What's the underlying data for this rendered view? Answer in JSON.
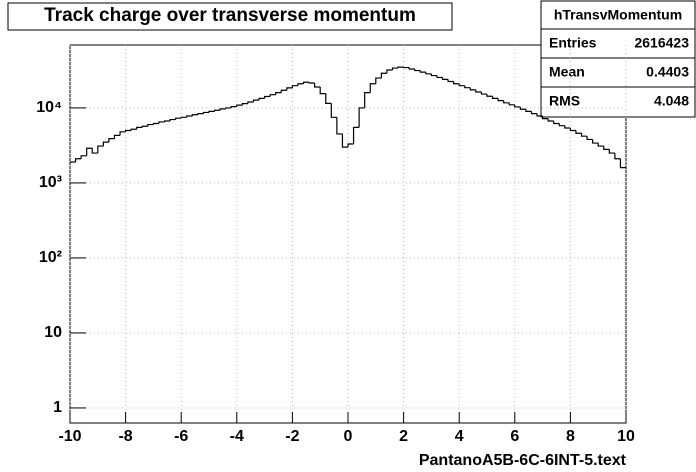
{
  "chart_data": {
    "type": "histogram",
    "title": "Track charge over transverse momentum",
    "x_label": "PantanoA5B-6C-6INT-5.text",
    "bins": [
      -10,
      -9.8,
      -9.6,
      -9.4,
      -9.2,
      -9,
      -8.8,
      -8.6,
      -8.4,
      -8.2,
      -8,
      -7.8,
      -7.6,
      -7.4,
      -7.2,
      -7,
      -6.8,
      -6.6,
      -6.4,
      -6.2,
      -6,
      -5.8,
      -5.6,
      -5.4,
      -5.2,
      -5,
      -4.8,
      -4.6,
      -4.4,
      -4.2,
      -4,
      -3.8,
      -3.6,
      -3.4,
      -3.2,
      -3,
      -2.8,
      -2.6,
      -2.4,
      -2.2,
      -2,
      -1.8,
      -1.6,
      -1.4,
      -1.2,
      -1,
      -0.8,
      -0.6,
      -0.4,
      -0.2,
      0,
      0.2,
      0.4,
      0.6,
      0.8,
      1,
      1.2,
      1.4,
      1.6,
      1.8,
      2,
      2.2,
      2.4,
      2.6,
      2.8,
      3,
      3.2,
      3.4,
      3.6,
      3.8,
      4,
      4.2,
      4.4,
      4.6,
      4.8,
      5,
      5.2,
      5.4,
      5.6,
      5.8,
      6,
      6.2,
      6.4,
      6.6,
      6.8,
      7,
      7.2,
      7.4,
      7.6,
      7.8,
      8,
      8.2,
      8.4,
      8.6,
      8.8,
      9,
      9.2,
      9.4,
      9.6,
      9.8,
      10
    ],
    "values": [
      1900,
      2100,
      2300,
      2900,
      2500,
      3100,
      3500,
      3900,
      4300,
      4800,
      5000,
      5200,
      5500,
      5700,
      6000,
      6200,
      6500,
      6700,
      7000,
      7300,
      7500,
      7800,
      8100,
      8400,
      8700,
      9000,
      9300,
      9700,
      10000,
      10400,
      10900,
      11400,
      12000,
      12700,
      13400,
      14200,
      15000,
      16000,
      17200,
      18500,
      19800,
      21000,
      22000,
      21500,
      19000,
      15500,
      11500,
      7500,
      4500,
      3000,
      3300,
      5500,
      10000,
      16000,
      21000,
      25000,
      29000,
      32000,
      34000,
      35000,
      34500,
      33000,
      31500,
      30000,
      28500,
      27000,
      25500,
      24000,
      22500,
      21000,
      19800,
      18600,
      17400,
      16300,
      15300,
      14300,
      13400,
      12500,
      11700,
      11000,
      10300,
      9600,
      9000,
      8400,
      7800,
      7200,
      6700,
      6200,
      5800,
      5400,
      5000,
      4600,
      4200,
      3800,
      3400,
      3100,
      2800,
      2500,
      2100,
      1600
    ],
    "color": "#000000",
    "xlim": [
      -10,
      10
    ],
    "xticks": [
      -10,
      -8,
      -6,
      -4,
      -2,
      0,
      2,
      4,
      6,
      8,
      10
    ],
    "ylim": [
      0.63,
      69000
    ],
    "log_y": true,
    "yticks": [
      1,
      10,
      {
        "value": 100,
        "label": "10²"
      },
      {
        "value": 1000,
        "label": "10³"
      },
      {
        "value": 10000,
        "label": "10⁴"
      }
    ],
    "grid": true,
    "stats": {
      "name": "hTransvMomentum",
      "rows": [
        {
          "label": "Entries",
          "value": 2616423
        },
        {
          "label": "Mean",
          "value": 0.4403
        },
        {
          "label": "RMS",
          "value": 4.048
        }
      ]
    }
  }
}
